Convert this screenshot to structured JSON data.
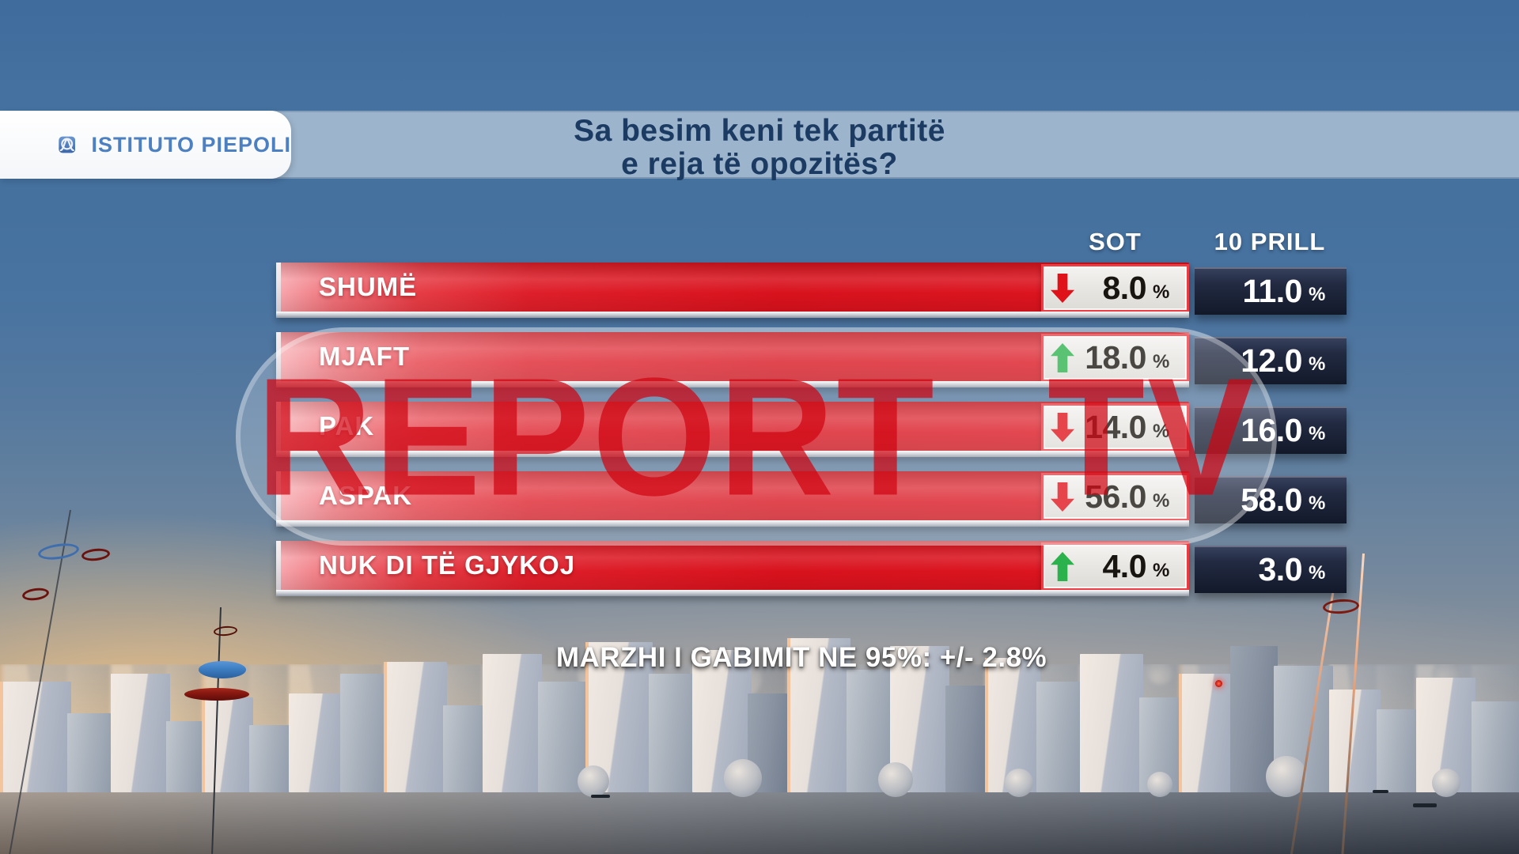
{
  "branding": {
    "institute": "ISTITUTO PIEPOLI",
    "watermark": {
      "part1": "REPORT",
      "part2": "TV"
    }
  },
  "title": {
    "line1": "Sa besim keni tek partitë",
    "line2": "e reja të opozitës?"
  },
  "table": {
    "col_sot": "SOT",
    "col_prill": "10 PRILL",
    "unit": "%",
    "rows": [
      {
        "label": "SHUMË",
        "trend": "down",
        "sot": "8.0",
        "prill": "11.0"
      },
      {
        "label": "MJAFT",
        "trend": "up",
        "sot": "18.0",
        "prill": "12.0"
      },
      {
        "label": "PAK",
        "trend": "down",
        "sot": "14.0",
        "prill": "16.0"
      },
      {
        "label": "ASPAK",
        "trend": "down",
        "sot": "56.0",
        "prill": "58.0"
      },
      {
        "label": "NUK DI TË GJYKOJ",
        "trend": "up",
        "sot": "4.0",
        "prill": "3.0"
      }
    ]
  },
  "footer": {
    "margin_note": "MARZHI I GABIMIT NE 95%: +/- 2.8%"
  },
  "icons": {
    "trend_down": "down-arrow",
    "trend_up": "up-arrow",
    "logo_icon": "bell-curve-in-circle"
  },
  "colors": {
    "bar_red": "#d8121d",
    "box_navy": "#1a2238",
    "trend_up_green": "#2cb24c",
    "trend_down_red": "#df1119",
    "title_navy": "#1c3b63",
    "watermark_red": "#d00410"
  },
  "chart_data": {
    "type": "table",
    "title": "Sa besim keni tek partitë e reja të opozitës?",
    "categories": [
      "SHUMË",
      "MJAFT",
      "PAK",
      "ASPAK",
      "NUK DI TË GJYKOJ"
    ],
    "series": [
      {
        "name": "SOT",
        "values": [
          8.0,
          18.0,
          14.0,
          56.0,
          4.0
        ]
      },
      {
        "name": "10 PRILL",
        "values": [
          11.0,
          12.0,
          16.0,
          58.0,
          3.0
        ]
      }
    ],
    "trend_vs_10_prill": [
      "down",
      "up",
      "down",
      "down",
      "up"
    ],
    "unit": "%",
    "note": "MARZHI I GABIMIT NE 95%: +/- 2.8%"
  }
}
